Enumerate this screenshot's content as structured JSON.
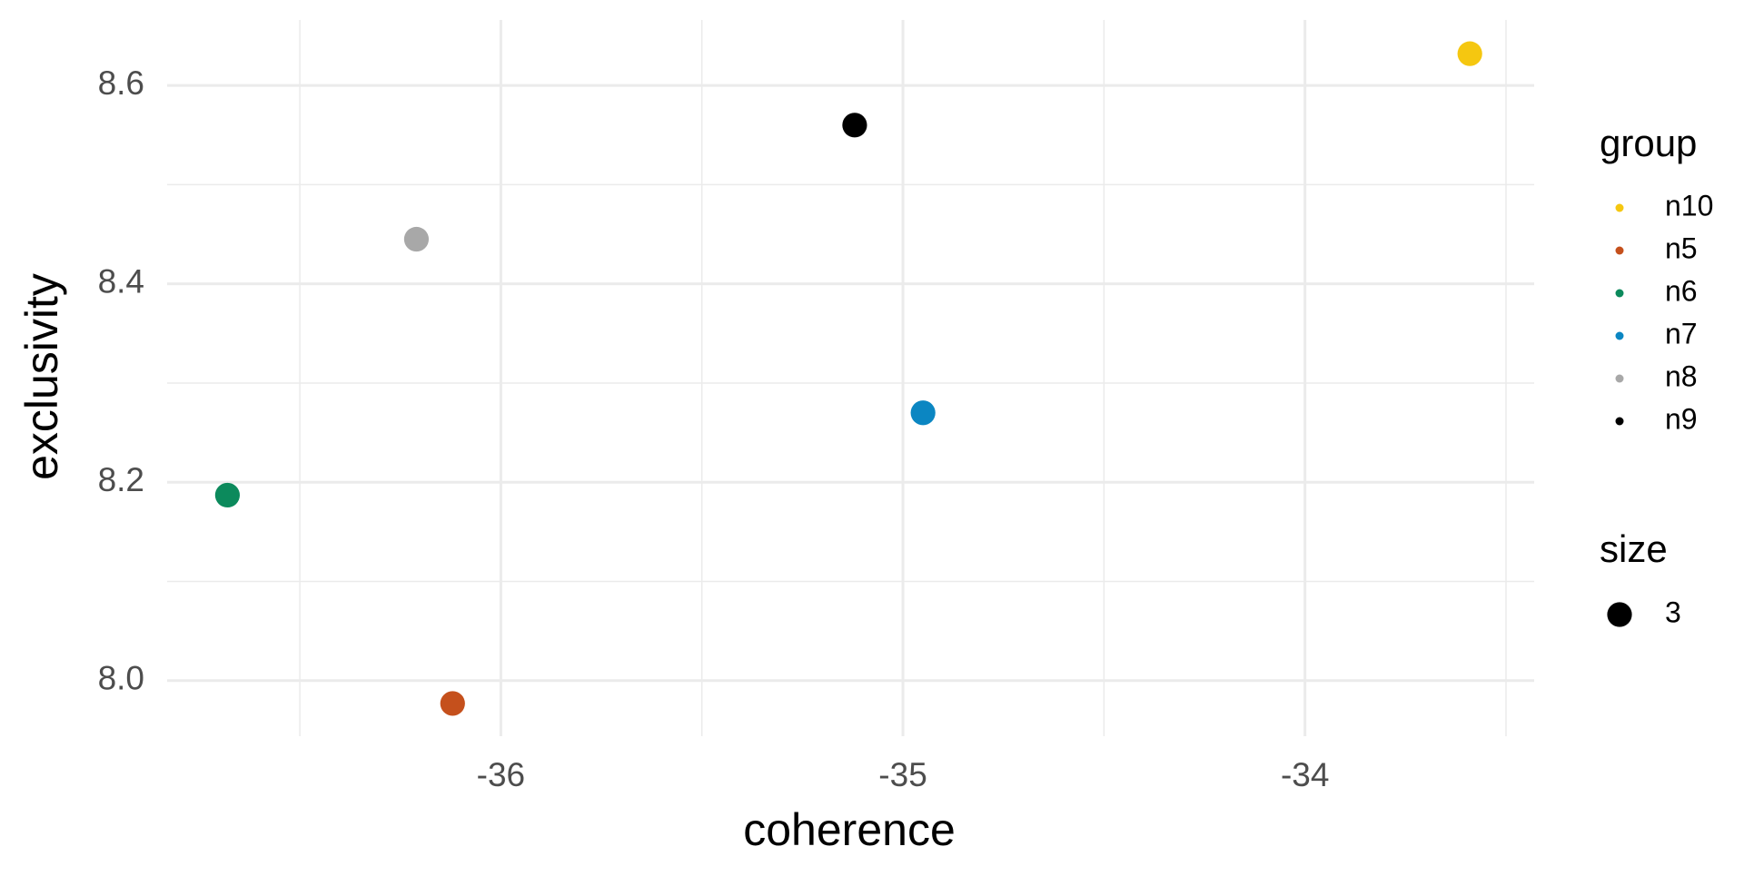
{
  "chart_data": {
    "type": "scatter",
    "x_label": "coherence",
    "y_label": "exclusivity",
    "xlim": [
      -36.83,
      -33.43
    ],
    "ylim": [
      7.944,
      8.666
    ],
    "xticks": [
      -36,
      -35,
      -34
    ],
    "yticks": [
      {
        "value": 8.0,
        "label": "8.0"
      },
      {
        "value": 8.2,
        "label": "8.2"
      },
      {
        "value": 8.4,
        "label": "8.4"
      },
      {
        "value": 8.6,
        "label": "8.6"
      }
    ],
    "minor_xticks": [
      -36.5,
      -35.5,
      -34.5,
      -33.5
    ],
    "minor_yticks": [
      8.1,
      8.3,
      8.5
    ],
    "grid": true,
    "legend_title": "group",
    "size_legend_title": "size",
    "size_values": [
      3
    ],
    "series": [
      {
        "name": "n10",
        "color": "#f5c710",
        "x": [
          -33.59
        ],
        "values": [
          8.632
        ]
      },
      {
        "name": "n5",
        "color": "#c5501c",
        "x": [
          -36.12
        ],
        "values": [
          7.977
        ]
      },
      {
        "name": "n6",
        "color": "#0c8a5c",
        "x": [
          -36.68
        ],
        "values": [
          8.187
        ]
      },
      {
        "name": "n7",
        "color": "#0b86c2",
        "x": [
          -34.95
        ],
        "values": [
          8.27
        ]
      },
      {
        "name": "n8",
        "color": "#a8a8a8",
        "x": [
          -36.21
        ],
        "values": [
          8.445
        ]
      },
      {
        "name": "n9",
        "color": "#000000",
        "x": [
          -35.12
        ],
        "values": [
          8.56
        ]
      }
    ]
  }
}
